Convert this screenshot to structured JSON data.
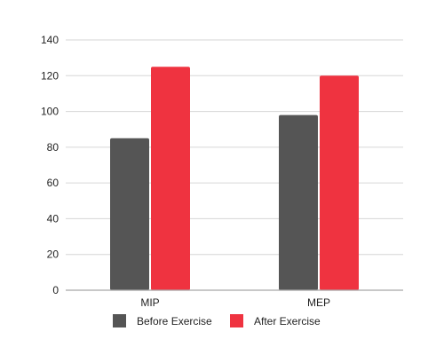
{
  "chart_data": {
    "type": "bar",
    "categories": [
      "MIP",
      "MEP"
    ],
    "series": [
      {
        "name": "Before Exercise",
        "values": [
          85,
          98
        ],
        "color": "#555555"
      },
      {
        "name": "After Exercise",
        "values": [
          125,
          120
        ],
        "color": "#EF3340"
      }
    ],
    "title": "",
    "xlabel": "",
    "ylabel": "",
    "ylim": [
      0,
      140
    ],
    "yticks": [
      0,
      20,
      40,
      60,
      80,
      100,
      120,
      140
    ],
    "grid": true,
    "legend_position": "bottom"
  }
}
